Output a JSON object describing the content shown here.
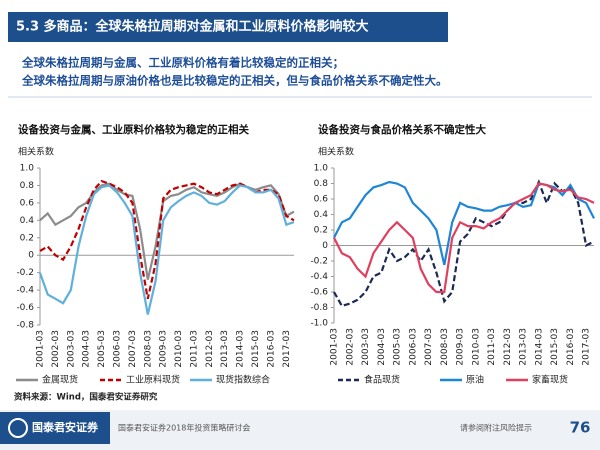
{
  "header": {
    "title": "5.3 多商品：全球朱格拉周期对金属和工业原料价格影响较大"
  },
  "summary": [
    "全球朱格拉周期与金属、工业原料价格有着比较稳定的正相关；",
    "全球朱格拉周期与原油价格也是比较稳定的正相关，但与食品价格关系不确定性大。"
  ],
  "chart_data": [
    {
      "type": "line",
      "title": "设备投资与金属、工业原料价格较为稳定的正相关",
      "y_label": "相关系数",
      "categories": [
        "2001-03",
        null,
        "2002-03",
        null,
        "2003-03",
        null,
        "2004-03",
        null,
        "2005-03",
        null,
        "2006-03",
        null,
        "2007-03",
        null,
        "2008-03",
        null,
        "2009-03",
        null,
        "2010-03",
        null,
        "2011-03",
        null,
        "2012-03",
        null,
        "2013-03",
        null,
        "2014-03",
        null,
        "2015-03",
        null,
        "2016-03",
        null,
        "2017-03",
        null
      ],
      "ylim": [
        -0.8,
        1
      ],
      "yticks": [
        -0.8,
        -0.6,
        -0.4,
        -0.2,
        0,
        0.2,
        0.4,
        0.6,
        0.8,
        {
          "value": 1,
          "label": "1.0"
        }
      ],
      "series": [
        {
          "name": "金属现货",
          "color": "#8c8c8c",
          "dashed": false,
          "values": [
            0.4,
            0.48,
            0.35,
            0.4,
            0.45,
            0.55,
            0.6,
            0.72,
            0.8,
            0.82,
            0.75,
            0.7,
            0.68,
            0.3,
            -0.28,
            0.1,
            0.62,
            0.68,
            0.7,
            0.75,
            0.78,
            0.72,
            0.7,
            0.68,
            0.72,
            0.78,
            0.82,
            0.78,
            0.75,
            0.78,
            0.8,
            0.7,
            0.45,
            0.5
          ]
        },
        {
          "name": "工业原料现货",
          "color": "#c00000",
          "dashed": true,
          "values": [
            0.05,
            0.1,
            0.0,
            -0.05,
            0.1,
            0.3,
            0.55,
            0.75,
            0.85,
            0.82,
            0.78,
            0.72,
            0.6,
            0.0,
            -0.5,
            -0.1,
            0.65,
            0.75,
            0.78,
            0.8,
            0.82,
            0.78,
            0.72,
            0.7,
            0.75,
            0.8,
            0.82,
            0.78,
            0.72,
            0.75,
            0.75,
            0.7,
            0.45,
            0.4
          ]
        },
        {
          "name": "现货指数综合",
          "color": "#5fb0dc",
          "dashed": false,
          "values": [
            -0.2,
            -0.45,
            -0.5,
            -0.55,
            -0.4,
            0.1,
            0.45,
            0.7,
            0.78,
            0.8,
            0.72,
            0.6,
            0.45,
            -0.2,
            -0.68,
            -0.3,
            0.4,
            0.55,
            0.62,
            0.68,
            0.72,
            0.68,
            0.6,
            0.58,
            0.62,
            0.72,
            0.8,
            0.78,
            0.72,
            0.72,
            0.75,
            0.65,
            0.35,
            0.38
          ]
        }
      ]
    },
    {
      "type": "line",
      "title": "设备投资与食品价格关系不确定性大",
      "y_label": "相关系数",
      "categories": [
        "2001-03",
        null,
        "2002-03",
        null,
        "2003-03",
        null,
        "2004-03",
        null,
        "2005-03",
        null,
        "2006-03",
        null,
        "2007-03",
        null,
        "2008-03",
        null,
        "2009-03",
        null,
        "2010-03",
        null,
        "2011-03",
        null,
        "2012-03",
        null,
        "2013-03",
        null,
        "2014-03",
        null,
        "2015-03",
        null,
        "2016-03",
        null,
        "2017-03",
        null
      ],
      "ylim": [
        -1,
        1
      ],
      "yticks": [
        {
          "value": -1,
          "label": "-1.0"
        },
        -0.8,
        -0.6,
        -0.4,
        -0.2,
        0,
        0.2,
        0.4,
        0.6,
        0.8,
        {
          "value": 1,
          "label": "1.0"
        }
      ],
      "series": [
        {
          "name": "食品现货",
          "color": "#1b2a55",
          "dashed": true,
          "values": [
            -0.6,
            -0.78,
            -0.75,
            -0.7,
            -0.6,
            -0.4,
            -0.35,
            -0.05,
            -0.2,
            -0.15,
            -0.05,
            -0.2,
            -0.05,
            -0.35,
            -0.72,
            -0.6,
            0.05,
            0.15,
            0.35,
            0.3,
            0.25,
            0.3,
            0.45,
            0.55,
            0.55,
            0.6,
            0.82,
            0.55,
            0.8,
            0.7,
            0.75,
            0.55,
            0.0,
            0.05
          ]
        },
        {
          "name": "原油",
          "color": "#1f86d6",
          "dashed": false,
          "values": [
            0.1,
            0.3,
            0.35,
            0.5,
            0.65,
            0.75,
            0.78,
            0.82,
            0.8,
            0.75,
            0.55,
            0.45,
            0.35,
            0.2,
            -0.25,
            0.3,
            0.55,
            0.5,
            0.48,
            0.45,
            0.45,
            0.5,
            0.52,
            0.55,
            0.5,
            0.52,
            0.8,
            0.78,
            0.75,
            0.65,
            0.78,
            0.6,
            0.55,
            0.35
          ]
        },
        {
          "name": "家畜现货",
          "color": "#e0405e",
          "dashed": false,
          "values": [
            0.1,
            -0.1,
            -0.15,
            -0.3,
            -0.4,
            -0.1,
            0.05,
            0.2,
            0.3,
            0.2,
            0.1,
            -0.3,
            -0.5,
            -0.6,
            -0.6,
            0.1,
            0.3,
            0.25,
            0.25,
            0.22,
            0.3,
            0.35,
            0.45,
            0.55,
            0.6,
            0.65,
            0.8,
            0.78,
            0.72,
            0.7,
            0.72,
            0.62,
            0.6,
            0.55
          ]
        }
      ]
    }
  ],
  "source": "资料来源：Wind，国泰君安证券研究",
  "footer": {
    "logo": "国泰君安证券",
    "event": "国泰君安证券2018年投资策略研讨会",
    "disclaimer": "请参阅附注风险提示",
    "page": "76"
  }
}
